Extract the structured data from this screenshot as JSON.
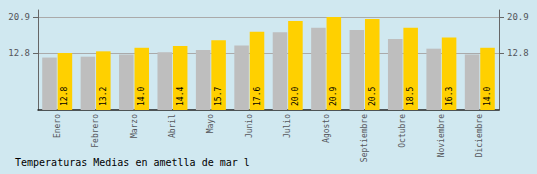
{
  "chart_data": {
    "type": "bar",
    "title": "Temperaturas Medias en ametlla de mar l",
    "categories": [
      "Enero",
      "Febrero",
      "Marzo",
      "Abril",
      "Mayo",
      "Junio",
      "Julio",
      "Agosto",
      "Septiembre",
      "Octubre",
      "Noviembre",
      "Diciembre"
    ],
    "series": [
      {
        "color": "#BEBEBE",
        "values": [
          11.8,
          12.0,
          12.5,
          13.0,
          13.5,
          14.5,
          17.5,
          18.5,
          18.0,
          16.0,
          13.8,
          12.5
        ]
      },
      {
        "color": "#FFD000",
        "values": [
          12.8,
          13.2,
          14.0,
          14.4,
          15.7,
          17.6,
          20.0,
          20.9,
          20.5,
          18.5,
          16.3,
          14.0
        ],
        "value_labels": [
          "12.8",
          "13.2",
          "14.0",
          "14.4",
          "15.7",
          "17.6",
          "20.0",
          "20.9",
          "20.5",
          "18.5",
          "16.3",
          "14.0"
        ],
        "data_labels": true
      }
    ],
    "ylim": [
      0,
      22.5
    ],
    "yticks": [
      12.8,
      20.9
    ],
    "y2lim": [
      0,
      22.5
    ],
    "y2ticks": [
      12.8,
      20.9
    ],
    "grid": true
  }
}
